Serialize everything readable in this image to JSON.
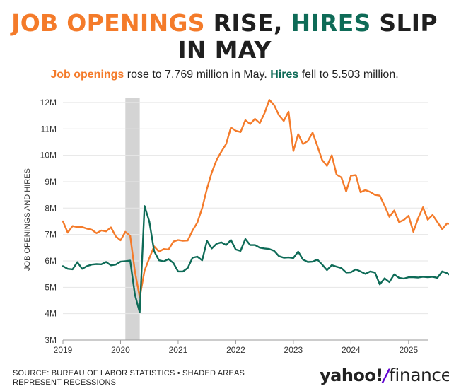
{
  "title": {
    "part1": "JOB OPENINGS",
    "part2": " RISE, ",
    "part3": "HIRES",
    "part4": " SLIP",
    "line2": "IN MAY"
  },
  "subtitle": {
    "part1": "Job openings",
    "part2": " rose to 7.769 million in May. ",
    "part3": "Hires",
    "part4": " fell to 5.503 million."
  },
  "footer": {
    "line1": "SOURCE: BUREAU OF LABOR STATISTICS • SHADED AREAS",
    "line2": "REPRESENT RECESSIONS"
  },
  "logo": {
    "brand": "yahoo!",
    "slash": "/",
    "product": "finance"
  },
  "colors": {
    "openings": "#f47b2a",
    "hires": "#0e6b57",
    "recession": "#d4d4d4"
  },
  "chart_data": {
    "type": "line",
    "ylabel": "JOB OPENINGS AND HIRES",
    "ylim": [
      3,
      12.4
    ],
    "yticks": [
      3,
      4,
      5,
      6,
      7,
      8,
      9,
      10,
      11,
      12
    ],
    "ytick_labels": [
      "3M",
      "4M",
      "5M",
      "6M",
      "7M",
      "8M",
      "9M",
      "10M",
      "11M",
      "12M"
    ],
    "xticks": [
      2019,
      2020,
      2021,
      2022,
      2023,
      2024,
      2025
    ],
    "xtick_labels": [
      "2019",
      "2020",
      "2021",
      "2022",
      "2023",
      "2024",
      "2025"
    ],
    "x_start": "2019-01",
    "x_end": "2025-05",
    "recessions": [
      {
        "start": "2020-02",
        "end": "2020-04"
      }
    ],
    "grid": "horizontal",
    "legend": "none",
    "series": [
      {
        "name": "Job openings",
        "values": [
          7.5,
          7.07,
          7.32,
          7.28,
          7.28,
          7.22,
          7.18,
          7.05,
          7.15,
          7.12,
          7.27,
          6.93,
          6.78,
          7.1,
          6.95,
          5.6,
          4.62,
          5.63,
          6.1,
          6.55,
          6.35,
          6.45,
          6.43,
          6.73,
          6.79,
          6.76,
          6.77,
          7.15,
          7.45,
          8.0,
          8.73,
          9.35,
          9.82,
          10.14,
          10.43,
          11.05,
          10.93,
          10.88,
          11.33,
          11.18,
          11.38,
          11.22,
          11.6,
          12.1,
          11.9,
          11.52,
          11.3,
          11.65,
          10.16,
          10.8,
          10.43,
          10.54,
          10.86,
          10.35,
          9.82,
          9.6,
          10.0,
          9.27,
          9.16,
          8.63,
          9.23,
          9.25,
          8.6,
          8.68,
          8.61,
          8.5,
          8.47,
          8.09,
          7.67,
          7.91,
          7.47,
          7.55,
          7.71,
          7.1,
          7.62,
          8.03,
          7.56,
          7.74,
          7.47,
          7.2,
          7.42,
          7.39,
          7.77
        ]
      },
      {
        "name": "Hires",
        "values": [
          5.8,
          5.7,
          5.68,
          5.95,
          5.7,
          5.8,
          5.86,
          5.88,
          5.87,
          5.96,
          5.83,
          5.86,
          5.97,
          5.99,
          6.01,
          4.72,
          4.05,
          8.08,
          7.49,
          6.37,
          6.02,
          5.98,
          6.07,
          5.92,
          5.6,
          5.6,
          5.73,
          6.12,
          6.16,
          6.02,
          6.76,
          6.47,
          6.65,
          6.7,
          6.6,
          6.79,
          6.43,
          6.38,
          6.83,
          6.6,
          6.6,
          6.5,
          6.47,
          6.45,
          6.38,
          6.18,
          6.12,
          6.13,
          6.11,
          6.35,
          6.05,
          5.96,
          5.97,
          6.05,
          5.86,
          5.65,
          5.84,
          5.78,
          5.73,
          5.56,
          5.57,
          5.68,
          5.6,
          5.51,
          5.6,
          5.56,
          5.11,
          5.34,
          5.2,
          5.49,
          5.36,
          5.33,
          5.38,
          5.38,
          5.37,
          5.4,
          5.38,
          5.4,
          5.36,
          5.6,
          5.54,
          5.42,
          5.5
        ]
      }
    ]
  }
}
